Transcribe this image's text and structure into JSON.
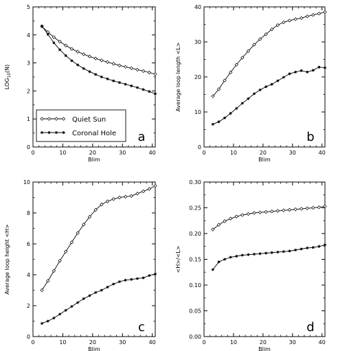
{
  "chart_data": [
    {
      "type": "line",
      "panel_label": "a",
      "xlabel": "Blim",
      "ylabel": "LOG",
      "ylabel_sub": "10",
      "ylabel_suffix": "(N)",
      "xlim": [
        0,
        41
      ],
      "ylim": [
        0,
        5
      ],
      "xticks": [
        0,
        10,
        20,
        30,
        40
      ],
      "yticks": [
        0,
        1,
        2,
        3,
        4,
        5
      ],
      "legend": {
        "position": "bottom-left",
        "entries": [
          "Quiet Sun",
          "Coronal Hole"
        ]
      },
      "series": [
        {
          "name": "Quiet Sun",
          "marker": "diamond",
          "x": [
            3,
            5,
            7,
            9,
            11,
            13,
            15,
            17,
            19,
            21,
            23,
            25,
            27,
            29,
            31,
            33,
            35,
            37,
            39,
            41
          ],
          "y": [
            4.3,
            4.1,
            3.92,
            3.76,
            3.62,
            3.5,
            3.4,
            3.31,
            3.23,
            3.16,
            3.09,
            3.03,
            2.97,
            2.91,
            2.86,
            2.81,
            2.76,
            2.71,
            2.66,
            2.6
          ]
        },
        {
          "name": "Coronal Hole",
          "marker": "star",
          "x": [
            3,
            5,
            7,
            9,
            11,
            13,
            15,
            17,
            19,
            21,
            23,
            25,
            27,
            29,
            31,
            33,
            35,
            37,
            39,
            41
          ],
          "y": [
            4.32,
            4.02,
            3.72,
            3.47,
            3.26,
            3.08,
            2.93,
            2.8,
            2.69,
            2.59,
            2.5,
            2.43,
            2.36,
            2.3,
            2.24,
            2.18,
            2.12,
            2.05,
            1.98,
            1.9
          ]
        }
      ]
    },
    {
      "type": "line",
      "panel_label": "b",
      "xlabel": "Blim",
      "ylabel": "Average loop length <L>",
      "xlim": [
        0,
        41
      ],
      "ylim": [
        0,
        40
      ],
      "xticks": [
        0,
        10,
        20,
        30,
        40
      ],
      "yticks": [
        0,
        10,
        20,
        30,
        40
      ],
      "series": [
        {
          "name": "Quiet Sun",
          "marker": "diamond",
          "x": [
            3,
            5,
            7,
            9,
            11,
            13,
            15,
            17,
            19,
            21,
            23,
            25,
            27,
            29,
            31,
            33,
            35,
            37,
            39,
            41
          ],
          "y": [
            14.5,
            16.5,
            19,
            21.3,
            23.5,
            25.5,
            27.4,
            29.2,
            30.8,
            32.2,
            33.6,
            34.8,
            35.6,
            36.1,
            36.5,
            36.8,
            37.3,
            37.7,
            38.1,
            38.5
          ]
        },
        {
          "name": "Coronal Hole",
          "marker": "star",
          "x": [
            3,
            5,
            7,
            9,
            11,
            13,
            15,
            17,
            19,
            21,
            23,
            25,
            27,
            29,
            31,
            33,
            35,
            37,
            39,
            41
          ],
          "y": [
            6.5,
            7.2,
            8.3,
            9.6,
            11,
            12.5,
            13.8,
            15.2,
            16.3,
            17.2,
            17.9,
            18.9,
            19.9,
            20.9,
            21.4,
            21.8,
            21.4,
            21.9,
            22.8,
            22.6
          ]
        }
      ]
    },
    {
      "type": "line",
      "panel_label": "c",
      "xlabel": "Blim",
      "ylabel": "Average loop height <H>",
      "xlim": [
        0,
        41
      ],
      "ylim": [
        0,
        10
      ],
      "xticks": [
        0,
        10,
        20,
        30,
        40
      ],
      "yticks": [
        0,
        2,
        4,
        6,
        8,
        10
      ],
      "series": [
        {
          "name": "Quiet Sun",
          "marker": "diamond",
          "x": [
            3,
            5,
            7,
            9,
            11,
            13,
            15,
            17,
            19,
            21,
            23,
            25,
            27,
            29,
            31,
            33,
            35,
            37,
            39,
            41
          ],
          "y": [
            3.0,
            3.6,
            4.25,
            4.9,
            5.5,
            6.1,
            6.7,
            7.25,
            7.75,
            8.2,
            8.55,
            8.75,
            8.9,
            9.0,
            9.05,
            9.1,
            9.25,
            9.4,
            9.55,
            9.75
          ]
        },
        {
          "name": "Coronal Hole",
          "marker": "star",
          "x": [
            3,
            5,
            7,
            9,
            11,
            13,
            15,
            17,
            19,
            21,
            23,
            25,
            27,
            29,
            31,
            33,
            35,
            37,
            39,
            41
          ],
          "y": [
            0.85,
            1.0,
            1.2,
            1.45,
            1.7,
            1.95,
            2.2,
            2.45,
            2.65,
            2.85,
            3.0,
            3.2,
            3.4,
            3.55,
            3.65,
            3.7,
            3.75,
            3.8,
            3.95,
            4.05
          ]
        }
      ]
    },
    {
      "type": "line",
      "panel_label": "d",
      "xlabel": "Blim",
      "ylabel": "<H>/<L>",
      "xlim": [
        0,
        41
      ],
      "ylim": [
        0,
        0.3
      ],
      "xticks": [
        0,
        10,
        20,
        30,
        40
      ],
      "yticks": [
        0,
        0.05,
        0.1,
        0.15,
        0.2,
        0.25,
        0.3
      ],
      "ytick_labels": [
        "0.00",
        "0.05",
        "0.10",
        "0.15",
        "0.20",
        "0.25",
        "0.30"
      ],
      "series": [
        {
          "name": "Quiet Sun",
          "marker": "diamond",
          "x": [
            3,
            5,
            7,
            9,
            11,
            13,
            15,
            17,
            19,
            21,
            23,
            25,
            27,
            29,
            31,
            33,
            35,
            37,
            39,
            41
          ],
          "y": [
            0.208,
            0.217,
            0.224,
            0.229,
            0.233,
            0.236,
            0.238,
            0.24,
            0.241,
            0.242,
            0.243,
            0.244,
            0.245,
            0.246,
            0.247,
            0.248,
            0.249,
            0.25,
            0.251,
            0.253
          ]
        },
        {
          "name": "Coronal Hole",
          "marker": "star",
          "x": [
            3,
            5,
            7,
            9,
            11,
            13,
            15,
            17,
            19,
            21,
            23,
            25,
            27,
            29,
            31,
            33,
            35,
            37,
            39,
            41
          ],
          "y": [
            0.13,
            0.145,
            0.15,
            0.154,
            0.156,
            0.158,
            0.159,
            0.16,
            0.161,
            0.162,
            0.163,
            0.164,
            0.165,
            0.166,
            0.168,
            0.17,
            0.172,
            0.173,
            0.175,
            0.178
          ]
        }
      ]
    }
  ]
}
